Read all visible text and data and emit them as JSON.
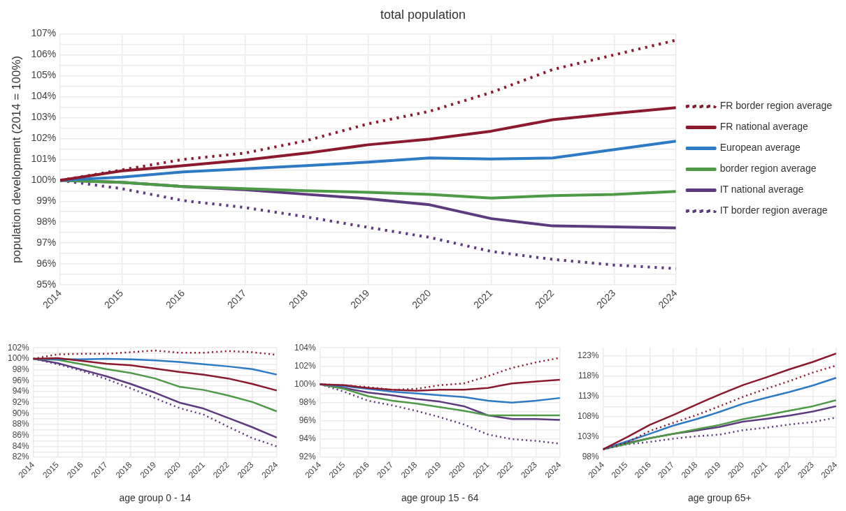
{
  "chart_data": [
    {
      "type": "line",
      "title": "total population",
      "ylabel": "population development (2014 = 100%)",
      "categories": [
        "2014",
        "2015",
        "2016",
        "2017",
        "2018",
        "2019",
        "2020",
        "2021",
        "2022",
        "2023",
        "2024"
      ],
      "ylim": [
        95,
        107
      ],
      "yticks": [
        {
          "value": 95,
          "label": "95%"
        },
        {
          "value": 95.5,
          "label": null
        },
        {
          "value": 96,
          "label": "96%"
        },
        {
          "value": 96.5,
          "label": null
        },
        {
          "value": 97,
          "label": "97%"
        },
        {
          "value": 97.5,
          "label": null
        },
        {
          "value": 98,
          "label": "98%"
        },
        {
          "value": 98.5,
          "label": null
        },
        {
          "value": 99,
          "label": "99%"
        },
        {
          "value": 99.5,
          "label": null
        },
        {
          "value": 100,
          "label": "100%"
        },
        {
          "value": 100.5,
          "label": null
        },
        {
          "value": 101,
          "label": "101%"
        },
        {
          "value": 101.5,
          "label": null
        },
        {
          "value": 102,
          "label": "102%"
        },
        {
          "value": 102.5,
          "label": null
        },
        {
          "value": 103,
          "label": "103%"
        },
        {
          "value": 103.5,
          "label": null
        },
        {
          "value": 104,
          "label": "104%"
        },
        {
          "value": 104.5,
          "label": null
        },
        {
          "value": 105,
          "label": "105%"
        },
        {
          "value": 105.5,
          "label": null
        },
        {
          "value": 106,
          "label": "106%"
        },
        {
          "value": 106.5,
          "label": null
        },
        {
          "value": 107,
          "label": "107%"
        }
      ],
      "grid": true,
      "legend": "right",
      "marker": "none",
      "series": [
        {
          "name": "FR border region average",
          "color": "#8b1a2e",
          "line_style": "dotted",
          "values": [
            100,
            100.5,
            101.0,
            101.3,
            101.9,
            102.7,
            103.3,
            104.2,
            105.3,
            106.0,
            106.7
          ]
        },
        {
          "name": "FR national average",
          "color": "#8b1a2e",
          "line_style": "solid",
          "values": [
            100,
            100.45,
            100.7,
            100.97,
            101.3,
            101.7,
            101.97,
            102.35,
            102.9,
            103.2,
            103.47
          ]
        },
        {
          "name": "European average",
          "color": "#2e7ac4",
          "line_style": "solid",
          "values": [
            100,
            100.15,
            100.4,
            100.55,
            100.7,
            100.87,
            101.07,
            101.02,
            101.07,
            101.47,
            101.87
          ]
        },
        {
          "name": "border region average",
          "color": "#4e9a47",
          "line_style": "solid",
          "values": [
            100,
            99.9,
            99.7,
            99.6,
            99.5,
            99.43,
            99.33,
            99.15,
            99.27,
            99.33,
            99.47
          ]
        },
        {
          "name": "IT national average",
          "color": "#5e3a7e",
          "line_style": "solid",
          "values": [
            100,
            99.9,
            99.7,
            99.55,
            99.33,
            99.12,
            98.83,
            98.17,
            97.82,
            97.77,
            97.72
          ]
        },
        {
          "name": "IT border region average",
          "color": "#5e3a7e",
          "line_style": "dotted",
          "values": [
            100,
            99.6,
            99.03,
            98.7,
            98.25,
            97.75,
            97.27,
            96.6,
            96.22,
            95.95,
            95.78
          ]
        }
      ]
    },
    {
      "type": "line",
      "xlabel": "age group 0 - 14",
      "categories": [
        "2014",
        "2015",
        "2016",
        "2017",
        "2018",
        "2019",
        "2020",
        "2021",
        "2022",
        "2023",
        "2024"
      ],
      "ylim": [
        82,
        102
      ],
      "yticks": [
        {
          "value": 82,
          "label": "82%"
        },
        {
          "value": 83,
          "label": null
        },
        {
          "value": 84,
          "label": "84%"
        },
        {
          "value": 85,
          "label": null
        },
        {
          "value": 86,
          "label": "86%"
        },
        {
          "value": 87,
          "label": null
        },
        {
          "value": 88,
          "label": "88%"
        },
        {
          "value": 89,
          "label": null
        },
        {
          "value": 90,
          "label": "90%"
        },
        {
          "value": 91,
          "label": null
        },
        {
          "value": 92,
          "label": "92%"
        },
        {
          "value": 93,
          "label": null
        },
        {
          "value": 94,
          "label": "94%"
        },
        {
          "value": 95,
          "label": null
        },
        {
          "value": 96,
          "label": "96%"
        },
        {
          "value": 97,
          "label": null
        },
        {
          "value": 98,
          "label": "98%"
        },
        {
          "value": 99,
          "label": null
        },
        {
          "value": 100,
          "label": "100%"
        },
        {
          "value": 101,
          "label": null
        },
        {
          "value": 102,
          "label": "102%"
        }
      ],
      "grid": true,
      "marker": "none",
      "series": [
        {
          "color": "#8b1a2e",
          "line_style": "dotted",
          "values": [
            100,
            100.8,
            100.9,
            100.9,
            101.2,
            101.5,
            101.1,
            101.1,
            101.4,
            101.2,
            100.7
          ]
        },
        {
          "color": "#8b1a2e",
          "line_style": "solid",
          "values": [
            100,
            100.1,
            99.6,
            99.1,
            98.8,
            98.2,
            97.6,
            97.1,
            96.4,
            95.4,
            94.2
          ]
        },
        {
          "color": "#2e7ac4",
          "line_style": "solid",
          "values": [
            100,
            99.9,
            99.9,
            100.0,
            99.9,
            99.7,
            99.4,
            99.0,
            98.6,
            98.1,
            97.1
          ]
        },
        {
          "color": "#4e9a47",
          "line_style": "solid",
          "values": [
            100,
            99.8,
            99.0,
            98.1,
            97.4,
            96.4,
            94.9,
            94.3,
            93.3,
            92.1,
            90.4
          ]
        },
        {
          "color": "#5e3a7e",
          "line_style": "solid",
          "values": [
            100,
            99.2,
            98.0,
            96.8,
            95.4,
            93.8,
            92.0,
            90.9,
            89.2,
            87.5,
            85.6
          ]
        },
        {
          "color": "#5e3a7e",
          "line_style": "dotted",
          "values": [
            100,
            99.0,
            97.8,
            96.3,
            94.6,
            92.8,
            91.0,
            89.8,
            87.6,
            85.5,
            84.0
          ]
        }
      ]
    },
    {
      "type": "line",
      "xlabel": "age group 15 - 64",
      "categories": [
        "2014",
        "2015",
        "2016",
        "2017",
        "2018",
        "2019",
        "2020",
        "2021",
        "2022",
        "2023",
        "2024"
      ],
      "ylim": [
        92,
        104
      ],
      "yticks": [
        {
          "value": 92,
          "label": "92%"
        },
        {
          "value": 93,
          "label": null
        },
        {
          "value": 94,
          "label": "94%"
        },
        {
          "value": 95,
          "label": null
        },
        {
          "value": 96,
          "label": "96%"
        },
        {
          "value": 97,
          "label": null
        },
        {
          "value": 98,
          "label": "98%"
        },
        {
          "value": 99,
          "label": null
        },
        {
          "value": 100,
          "label": "100%"
        },
        {
          "value": 101,
          "label": null
        },
        {
          "value": 102,
          "label": "102%"
        },
        {
          "value": 103,
          "label": null
        },
        {
          "value": 104,
          "label": "104%"
        }
      ],
      "grid": true,
      "marker": "none",
      "series": [
        {
          "color": "#8b1a2e",
          "line_style": "dotted",
          "values": [
            100,
            99.9,
            99.7,
            99.4,
            99.5,
            99.9,
            100.1,
            100.9,
            101.8,
            102.4,
            102.9
          ]
        },
        {
          "color": "#8b1a2e",
          "line_style": "solid",
          "values": [
            100,
            99.9,
            99.6,
            99.4,
            99.3,
            99.4,
            99.4,
            99.6,
            100.1,
            100.3,
            100.5
          ]
        },
        {
          "color": "#2e7ac4",
          "line_style": "solid",
          "values": [
            100,
            99.8,
            99.5,
            99.2,
            99.0,
            98.8,
            98.6,
            98.2,
            98.0,
            98.2,
            98.5
          ]
        },
        {
          "color": "#4e9a47",
          "line_style": "solid",
          "values": [
            100,
            99.5,
            98.7,
            98.2,
            97.9,
            97.5,
            97.1,
            96.6,
            96.6,
            96.6,
            96.6
          ]
        },
        {
          "color": "#5e3a7e",
          "line_style": "solid",
          "values": [
            100,
            99.6,
            99.1,
            98.8,
            98.4,
            98.1,
            97.6,
            96.6,
            96.2,
            96.2,
            96.1
          ]
        },
        {
          "color": "#5e3a7e",
          "line_style": "dotted",
          "values": [
            100,
            99.2,
            98.2,
            97.7,
            97.1,
            96.4,
            95.6,
            94.5,
            94.0,
            93.8,
            93.5
          ]
        }
      ]
    },
    {
      "type": "line",
      "xlabel": "age group 65+",
      "categories": [
        "2014",
        "2015",
        "2016",
        "2017",
        "2018",
        "2019",
        "2020",
        "2021",
        "2022",
        "2023",
        "2024"
      ],
      "ylim": [
        98,
        125
      ],
      "yticks": [
        {
          "value": 98,
          "label": "98%"
        },
        {
          "value": 100.5,
          "label": null
        },
        {
          "value": 103,
          "label": "103%"
        },
        {
          "value": 105.5,
          "label": null
        },
        {
          "value": 108,
          "label": "108%"
        },
        {
          "value": 110.5,
          "label": null
        },
        {
          "value": 113,
          "label": "113%"
        },
        {
          "value": 115.5,
          "label": null
        },
        {
          "value": 118,
          "label": "118%"
        },
        {
          "value": 120.5,
          "label": null
        },
        {
          "value": 123,
          "label": "123%"
        }
      ],
      "grid": true,
      "marker": "none",
      "series": [
        {
          "color": "#8b1a2e",
          "line_style": "dotted",
          "values": [
            100,
            101.6,
            104.5,
            106.5,
            108.4,
            110.6,
            112.9,
            114.9,
            116.8,
            118.9,
            120.6
          ]
        },
        {
          "color": "#8b1a2e",
          "line_style": "solid",
          "values": [
            100,
            102.9,
            106.0,
            108.4,
            111.0,
            113.5,
            115.8,
            117.7,
            119.7,
            121.5,
            123.6
          ]
        },
        {
          "color": "#2e7ac4",
          "line_style": "solid",
          "values": [
            100,
            101.9,
            103.8,
            105.8,
            107.4,
            109.2,
            111.2,
            112.7,
            114.1,
            115.7,
            117.6
          ]
        },
        {
          "color": "#4e9a47",
          "line_style": "solid",
          "values": [
            100,
            101.3,
            102.7,
            103.8,
            104.9,
            106.0,
            107.4,
            108.4,
            109.5,
            110.6,
            112.1
          ]
        },
        {
          "color": "#5e3a7e",
          "line_style": "solid",
          "values": [
            100,
            101.5,
            102.7,
            103.8,
            104.6,
            105.5,
            106.8,
            107.5,
            108.3,
            109.3,
            110.6
          ]
        },
        {
          "color": "#5e3a7e",
          "line_style": "dotted",
          "values": [
            100,
            101.2,
            101.8,
            102.6,
            103.2,
            103.6,
            104.7,
            105.3,
            106.1,
            106.7,
            107.8
          ]
        }
      ]
    }
  ]
}
